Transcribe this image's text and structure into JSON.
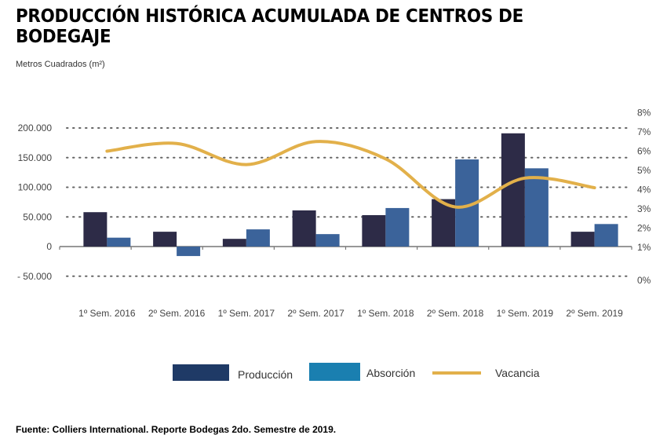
{
  "chart_data": {
    "type": "bar",
    "title": "PRODUCCIÓN HISTÓRICA ACUMULADA DE CENTROS DE BODEGAJE",
    "ylabel": "Metros Cuadrados (m²)",
    "source": "Fuente: Colliers International. Reporte Bodegas 2do. Semestre de 2019.",
    "categories": [
      "1º Sem. 2016",
      "2º Sem. 2016",
      "1º Sem. 2017",
      "2º Sem. 2017",
      "1º Sem. 2018",
      "2º Sem. 2018",
      "1º Sem. 2019",
      "2º Sem. 2019"
    ],
    "series": [
      {
        "name": "Producción",
        "type": "bar",
        "axis": "left",
        "color": "#2d2b47",
        "legend_color": "#1f3a66",
        "values": [
          58000,
          25000,
          13000,
          61000,
          53000,
          80000,
          191000,
          25000
        ]
      },
      {
        "name": "Absorción",
        "type": "bar",
        "axis": "left",
        "color": "#3b639a",
        "legend_color": "#1a7fb0",
        "values": [
          15000,
          -16000,
          29000,
          21000,
          65000,
          147000,
          132000,
          38000
        ]
      },
      {
        "name": "Vacancia",
        "type": "line",
        "axis": "right",
        "color": "#e2b04a",
        "values": [
          6.0,
          6.4,
          5.3,
          6.5,
          5.6,
          3.1,
          4.6,
          4.1
        ]
      }
    ],
    "left_axis": {
      "ylim": [
        -50000,
        200000
      ],
      "ticks": [
        {
          "v": 200000,
          "label": "200.000"
        },
        {
          "v": 150000,
          "label": "150.000"
        },
        {
          "v": 100000,
          "label": "100.000"
        },
        {
          "v": 50000,
          "label": "50.000"
        },
        {
          "v": 0,
          "label": "0"
        },
        {
          "v": -50000,
          "label": "- 50.000"
        }
      ]
    },
    "right_axis": {
      "ticks": [
        {
          "v": 8,
          "label": "8%"
        },
        {
          "v": 7,
          "label": "7%"
        },
        {
          "v": 6,
          "label": "6%"
        },
        {
          "v": 5,
          "label": "5%"
        },
        {
          "v": 4,
          "label": "4%"
        },
        {
          "v": 3,
          "label": "3%"
        },
        {
          "v": 2,
          "label": "2%"
        },
        {
          "v": 1,
          "label": "1%"
        },
        {
          "v": 0,
          "label": "0%"
        }
      ]
    },
    "grid": true,
    "legend": "bottom"
  }
}
